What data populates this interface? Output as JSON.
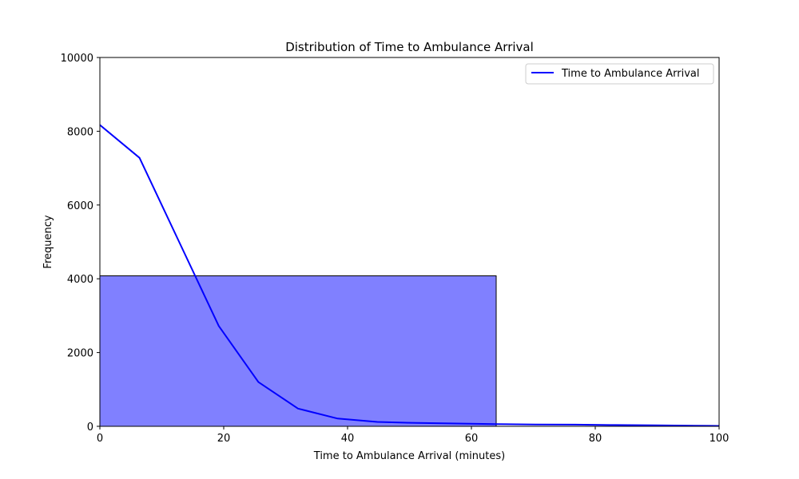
{
  "chart_data": {
    "type": "bar",
    "title": "Distribution of Time to Ambulance Arrival",
    "xlabel": "Time to Ambulance Arrival (minutes)",
    "ylabel": "Frequency",
    "xlim": [
      0,
      100
    ],
    "ylim": [
      0,
      10000
    ],
    "xticks": [
      0,
      20,
      40,
      60,
      80,
      100
    ],
    "yticks": [
      0,
      2000,
      4000,
      6000,
      8000,
      10000
    ],
    "grid": false,
    "legend_position": "top-right",
    "histogram_bins": [
      {
        "x0": 0,
        "x1": 64,
        "value": 4080
      }
    ],
    "bar_color": "#8080ff",
    "bar_edge_color": "#000000",
    "series": [
      {
        "name": "Time to Ambulance Arrival",
        "type": "line",
        "color": "#0000ff",
        "x": [
          0,
          6.4,
          12.8,
          19.2,
          25.6,
          32,
          38.4,
          44.8,
          51.2,
          57.6,
          64,
          70.4,
          76.8,
          83.2,
          89.6,
          96,
          100
        ],
        "y": [
          8170,
          7280,
          5000,
          2720,
          1200,
          480,
          210,
          120,
          90,
          75,
          60,
          50,
          45,
          35,
          25,
          15,
          10
        ]
      }
    ]
  }
}
